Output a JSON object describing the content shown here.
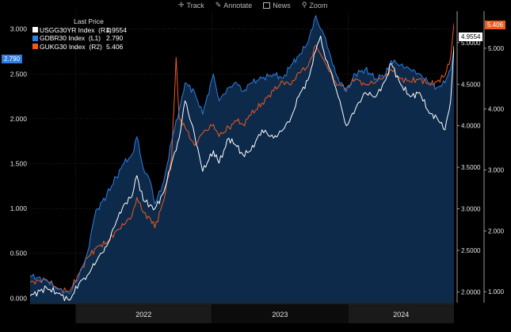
{
  "toolbar": {
    "items": [
      {
        "label": "Track",
        "icon": "crosshair-icon"
      },
      {
        "label": "Annotate",
        "icon": "pencil-icon"
      },
      {
        "label": "News",
        "icon": "news-icon"
      },
      {
        "label": "Zoom",
        "icon": "magnifier-icon"
      }
    ]
  },
  "legend": {
    "title": "Last Price",
    "entries": [
      {
        "name": "USGG30YR Index  (R1)",
        "value": "4.9554",
        "color": "#ffffff"
      },
      {
        "name": "GDBR30 Index  (L1)",
        "value": "2.790",
        "color": "#2f7de1"
      },
      {
        "name": "GUKG30 Index  (R2)",
        "value": "5.406",
        "color": "#f05a1e"
      }
    ]
  },
  "tags": {
    "left": {
      "text": "2.790",
      "color": "#2f7de1"
    },
    "right1": {
      "text": "4.9554",
      "color": "#ffffff"
    },
    "right2": {
      "text": "5.406",
      "color": "#f05a1e"
    }
  },
  "colors": {
    "fill": "#0d2a4a",
    "grid": "#3a3a3a",
    "background": "#000000"
  },
  "chart_data": {
    "type": "line",
    "grid": true,
    "legend_position": "top-left",
    "x_start": "2021-09-01",
    "x_end": "2024-10-10",
    "x_tick_labels": [
      {
        "label": "2022",
        "x_range": [
          "2022-01-01",
          "2022-12-31"
        ]
      },
      {
        "label": "2023",
        "x_range": [
          "2023-01-01",
          "2023-12-31"
        ]
      },
      {
        "label": "2024",
        "x_range": [
          "2024-01-01",
          "2024-12-31"
        ]
      }
    ],
    "axes": {
      "L1": {
        "min": -0.05,
        "max": 3.2,
        "ticks": [
          "0.000",
          "0.500",
          "1.000",
          "1.500",
          "2.000",
          "2.500",
          "3.000"
        ],
        "side": "left"
      },
      "R1": {
        "min": 1.87,
        "max": 5.38,
        "ticks": [
          "2.0000",
          "2.5000",
          "3.0000",
          "3.5000",
          "4.0000",
          "4.5000",
          "5.0000"
        ],
        "side": "right-inner"
      },
      "R2": {
        "min": 0.82,
        "max": 5.61,
        "ticks": [
          "1.000",
          "2.000",
          "3.000",
          "4.000",
          "5.000"
        ],
        "side": "right-outer"
      }
    },
    "series": [
      {
        "name": "USGG30YR Index (R1)",
        "axis": "R1",
        "color": "#ffffff",
        "last": 4.9554,
        "dates": [
          "2021-09-01",
          "2021-10-15",
          "2021-11-15",
          "2021-12-15",
          "2022-01-10",
          "2022-02-01",
          "2022-03-01",
          "2022-03-25",
          "2022-04-20",
          "2022-05-10",
          "2022-06-01",
          "2022-06-14",
          "2022-07-01",
          "2022-07-20",
          "2022-08-01",
          "2022-08-25",
          "2022-09-15",
          "2022-10-05",
          "2022-10-21",
          "2022-11-15",
          "2022-12-07",
          "2023-01-05",
          "2023-01-20",
          "2023-02-15",
          "2023-03-08",
          "2023-03-25",
          "2023-04-15",
          "2023-05-15",
          "2023-06-15",
          "2023-07-10",
          "2023-08-01",
          "2023-08-21",
          "2023-09-15",
          "2023-10-06",
          "2023-10-19",
          "2023-11-01",
          "2023-11-20",
          "2023-12-05",
          "2023-12-27",
          "2024-01-20",
          "2024-02-15",
          "2024-03-15",
          "2024-04-10",
          "2024-04-25",
          "2024-05-20",
          "2024-06-15",
          "2024-07-10",
          "2024-08-05",
          "2024-08-25",
          "2024-09-16",
          "2024-10-01",
          "2024-10-10"
        ],
        "values": [
          1.95,
          2.05,
          1.98,
          1.9,
          2.1,
          2.2,
          2.4,
          2.55,
          2.85,
          3.05,
          3.15,
          3.4,
          3.1,
          3.05,
          3.0,
          3.2,
          3.55,
          3.85,
          4.3,
          3.9,
          3.45,
          3.7,
          3.55,
          3.85,
          3.75,
          3.65,
          3.7,
          3.95,
          3.85,
          3.95,
          4.1,
          4.35,
          4.55,
          4.9,
          5.08,
          4.8,
          4.6,
          4.35,
          4.0,
          4.2,
          4.4,
          4.35,
          4.55,
          4.75,
          4.5,
          4.35,
          4.4,
          4.15,
          4.1,
          3.95,
          4.3,
          4.96
        ]
      },
      {
        "name": "GDBR30 Index (L1)",
        "axis": "L1",
        "color": "#2f7de1",
        "last": 2.79,
        "dates": [
          "2021-09-01",
          "2021-10-15",
          "2021-11-15",
          "2021-12-15",
          "2022-01-10",
          "2022-02-01",
          "2022-02-20",
          "2022-03-01",
          "2022-03-25",
          "2022-04-20",
          "2022-05-10",
          "2022-06-01",
          "2022-06-14",
          "2022-07-01",
          "2022-07-20",
          "2022-08-01",
          "2022-08-25",
          "2022-09-15",
          "2022-10-05",
          "2022-10-21",
          "2022-11-15",
          "2022-12-07",
          "2023-01-05",
          "2023-01-20",
          "2023-02-15",
          "2023-03-08",
          "2023-03-25",
          "2023-04-15",
          "2023-05-15",
          "2023-06-15",
          "2023-07-10",
          "2023-08-01",
          "2023-08-21",
          "2023-09-15",
          "2023-10-06",
          "2023-10-19",
          "2023-11-01",
          "2023-11-20",
          "2023-12-05",
          "2023-12-27",
          "2024-01-20",
          "2024-02-15",
          "2024-03-15",
          "2024-04-10",
          "2024-04-25",
          "2024-05-20",
          "2024-06-15",
          "2024-07-10",
          "2024-08-05",
          "2024-08-25",
          "2024-09-16",
          "2024-10-01",
          "2024-10-10"
        ],
        "values": [
          0.25,
          0.2,
          0.1,
          0.05,
          0.25,
          0.5,
          0.9,
          1.0,
          1.15,
          1.35,
          1.5,
          1.6,
          1.8,
          1.45,
          1.3,
          1.05,
          1.3,
          1.75,
          2.1,
          2.4,
          2.3,
          2.05,
          2.5,
          2.2,
          2.35,
          2.4,
          2.3,
          2.4,
          2.45,
          2.5,
          2.45,
          2.6,
          2.7,
          2.85,
          3.15,
          3.0,
          2.9,
          2.6,
          2.45,
          2.3,
          2.5,
          2.55,
          2.45,
          2.5,
          2.65,
          2.6,
          2.55,
          2.5,
          2.4,
          2.35,
          2.4,
          2.55,
          2.79
        ]
      },
      {
        "name": "GUKG30 Index (R2)",
        "axis": "R2",
        "color": "#f05a1e",
        "last": 5.406,
        "dates": [
          "2021-09-01",
          "2021-10-15",
          "2021-11-15",
          "2021-12-15",
          "2022-01-10",
          "2022-02-01",
          "2022-03-01",
          "2022-03-25",
          "2022-04-20",
          "2022-05-10",
          "2022-06-01",
          "2022-06-14",
          "2022-07-01",
          "2022-07-20",
          "2022-08-01",
          "2022-08-25",
          "2022-09-15",
          "2022-09-27",
          "2022-10-05",
          "2022-10-21",
          "2022-11-15",
          "2022-12-07",
          "2023-01-05",
          "2023-01-20",
          "2023-02-15",
          "2023-03-08",
          "2023-03-25",
          "2023-04-15",
          "2023-05-15",
          "2023-06-15",
          "2023-07-10",
          "2023-08-01",
          "2023-08-21",
          "2023-09-15",
          "2023-10-06",
          "2023-10-19",
          "2023-11-01",
          "2023-11-20",
          "2023-12-05",
          "2023-12-27",
          "2024-01-20",
          "2024-02-15",
          "2024-03-15",
          "2024-04-10",
          "2024-04-25",
          "2024-05-20",
          "2024-06-15",
          "2024-07-10",
          "2024-08-05",
          "2024-08-25",
          "2024-09-16",
          "2024-10-01",
          "2024-10-10"
        ],
        "values": [
          1.15,
          1.2,
          1.05,
          1.0,
          1.3,
          1.55,
          1.75,
          1.8,
          2.0,
          2.1,
          2.25,
          2.55,
          2.3,
          2.2,
          2.05,
          2.5,
          3.2,
          4.85,
          3.85,
          3.7,
          3.4,
          3.6,
          3.75,
          3.55,
          3.7,
          3.8,
          3.75,
          3.9,
          4.1,
          4.3,
          4.45,
          4.4,
          4.6,
          4.7,
          5.05,
          4.9,
          4.75,
          4.5,
          4.4,
          4.35,
          4.5,
          4.4,
          4.45,
          4.55,
          4.65,
          4.5,
          4.45,
          4.5,
          4.4,
          4.45,
          4.55,
          4.85,
          5.41
        ]
      }
    ]
  }
}
